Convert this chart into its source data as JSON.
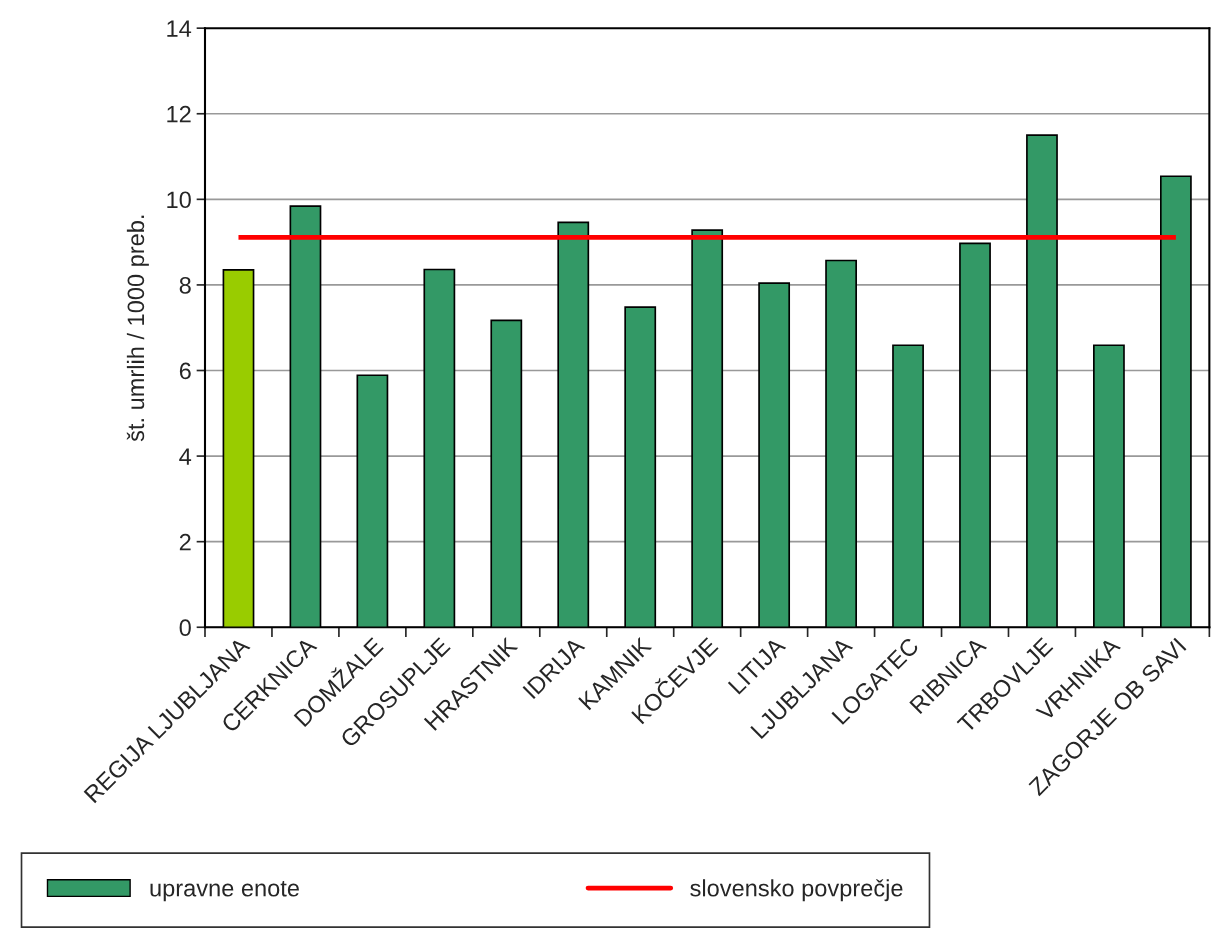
{
  "chart_data": {
    "type": "bar",
    "ylabel": "št. umrlih / 1000 preb.",
    "categories": [
      "REGIJA LJUBLJANA",
      "CERKNICA",
      "DOMŽALE",
      "GROSUPLJE",
      "HRASTNIK",
      "IDRIJA",
      "KAMNIK",
      "KOČEVJE",
      "LITIJA",
      "LJUBLJANA",
      "LOGATEC",
      "RIBNICA",
      "TRBOVLJE",
      "VRHNIKA",
      "ZAGORJE OB SAVI"
    ],
    "series": [
      {
        "name": "upravne enote",
        "colors": [
          "#99cc00",
          "#339966",
          "#339966",
          "#339966",
          "#339966",
          "#339966",
          "#339966",
          "#339966",
          "#339966",
          "#339966",
          "#339966",
          "#339966",
          "#339966",
          "#339966",
          "#339966"
        ],
        "values": [
          8.35,
          9.84,
          5.89,
          8.36,
          7.17,
          9.46,
          7.48,
          9.28,
          8.04,
          8.57,
          6.59,
          8.97,
          11.5,
          6.59,
          10.54
        ]
      }
    ],
    "ref_lines": [
      {
        "axis": "y",
        "value": 9.11,
        "label": "slovensko povprečje",
        "color": "#ff0000",
        "line_style": "solid"
      }
    ],
    "ylim": [
      0,
      14
    ],
    "yticks": [
      0,
      2,
      4,
      6,
      8,
      10,
      12,
      14
    ],
    "grid": "y",
    "legend": "bottom"
  }
}
